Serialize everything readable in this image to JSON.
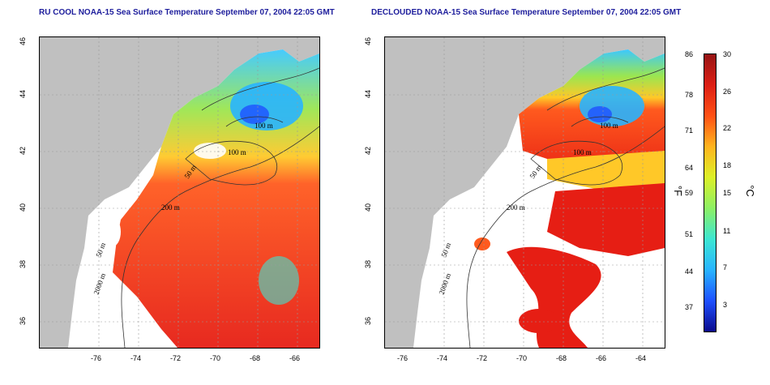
{
  "panels": [
    {
      "title": "RU COOL NOAA-15 Sea Surface Temperature September 07, 2004 22:05 GMT",
      "clouded": true
    },
    {
      "title": "DECLOUDED NOAA-15 Sea Surface Temperature September 07, 2004 22:05 GMT",
      "clouded": false
    }
  ],
  "axes": {
    "x_ticks": [
      "-76",
      "-74",
      "-72",
      "-70",
      "-68",
      "-66",
      "-64"
    ],
    "y_ticks": [
      "46",
      "44",
      "42",
      "40",
      "38",
      "36"
    ],
    "xlim": [
      -77,
      -63
    ],
    "ylim": [
      35,
      46
    ]
  },
  "contour_labels": [
    "100 m",
    "100 m",
    "50 m",
    "200 m",
    "50 m",
    "2000 m"
  ],
  "colorbar": {
    "fahrenheit_ticks": [
      "86",
      "78",
      "71",
      "64",
      "59",
      "51",
      "44",
      "37"
    ],
    "celsius_ticks": [
      "30",
      "26",
      "22",
      "18",
      "15",
      "11",
      "7",
      "3"
    ],
    "fahrenheit_unit": "°F",
    "celsius_unit": "°C",
    "range_c": [
      0,
      30
    ],
    "colors": [
      "#0a0a8c",
      "#1e50ff",
      "#28b4ff",
      "#3ce6d2",
      "#8cf064",
      "#dcf028",
      "#ffb41e",
      "#ff5014",
      "#dc1e14",
      "#961414"
    ]
  },
  "colors": {
    "land": "#c0c0c0",
    "title": "#1d1d9c",
    "contour": "#333333"
  }
}
